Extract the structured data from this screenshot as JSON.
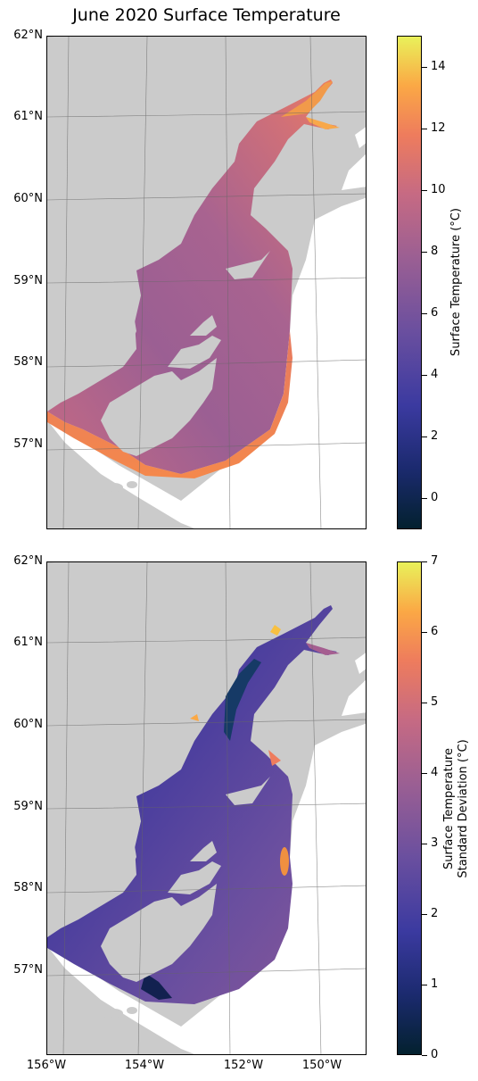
{
  "title": "June 2020 Surface Temperature",
  "colors": {
    "land": "#cbcbcb",
    "ocean": "#ffffff",
    "gridline": "#777777",
    "colormap": [
      "#03212f",
      "#1b2a6e",
      "#3b3aa0",
      "#6a4f9f",
      "#9b5f93",
      "#c66a83",
      "#ee7c5d",
      "#fba845",
      "#e9f15a"
    ]
  },
  "map_extent": {
    "lon": [
      -156,
      -149
    ],
    "lat": [
      56,
      62
    ]
  },
  "lat_labels": [
    "62°N",
    "61°N",
    "60°N",
    "59°N",
    "58°N",
    "57°N"
  ],
  "lon_labels": [
    "156°W",
    "154°W",
    "152°W",
    "150°W"
  ],
  "panels": [
    {
      "id": "mean",
      "colorbar": {
        "label": "Surface Temperature (°C)",
        "min": -1,
        "max": 15,
        "ticks": [
          "0",
          "2",
          "4",
          "6",
          "8",
          "10",
          "12",
          "14"
        ]
      }
    },
    {
      "id": "std",
      "colorbar": {
        "label_line1": "Surface Temperature",
        "label_line2": "Standard Deviation (°C)",
        "min": 0,
        "max": 7,
        "ticks": [
          "0",
          "1",
          "2",
          "3",
          "4",
          "5",
          "6",
          "7"
        ]
      }
    }
  ]
}
